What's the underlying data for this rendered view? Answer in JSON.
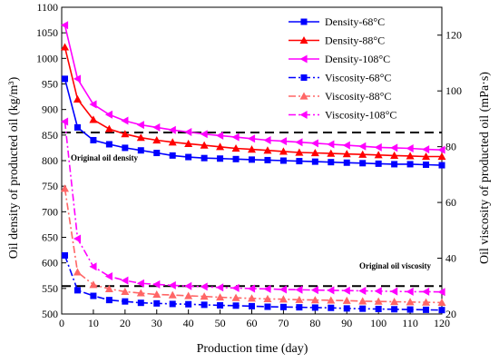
{
  "chart_data": {
    "type": "line",
    "x_label": "Production time (day)",
    "y_left_label": "Oil density of producted oil (kg/m³)",
    "y_right_label": "Oil viscosity of producted oil (mPa·s)",
    "x_range": [
      0,
      120
    ],
    "x_ticks": [
      0,
      10,
      20,
      30,
      40,
      50,
      60,
      70,
      80,
      90,
      100,
      110,
      120
    ],
    "y_left_range": [
      500,
      1100
    ],
    "y_left_ticks": [
      500,
      550,
      600,
      650,
      700,
      750,
      800,
      850,
      900,
      950,
      1000,
      1050,
      1100
    ],
    "y_right_range": [
      20,
      130
    ],
    "y_right_ticks": [
      20,
      40,
      60,
      80,
      100,
      120
    ],
    "grid": false,
    "legend_position": "top-right",
    "series": [
      {
        "name": "Density-68°C",
        "axis": "left",
        "color": "#0000ff",
        "line": "solid",
        "marker": "square",
        "x": [
          1,
          5,
          10,
          15,
          20,
          25,
          30,
          35,
          40,
          45,
          50,
          55,
          60,
          65,
          70,
          75,
          80,
          85,
          90,
          95,
          100,
          105,
          110,
          115,
          120
        ],
        "y": [
          960,
          865,
          840,
          832,
          825,
          820,
          815,
          810,
          807,
          805,
          804,
          803,
          802,
          801,
          800,
          799,
          798,
          797,
          796,
          795,
          794,
          793,
          793,
          792,
          791
        ]
      },
      {
        "name": "Density-88°C",
        "axis": "left",
        "color": "#ff0000",
        "line": "solid",
        "marker": "triangle-up",
        "x": [
          1,
          5,
          10,
          15,
          20,
          25,
          30,
          35,
          40,
          45,
          50,
          55,
          60,
          65,
          70,
          75,
          80,
          85,
          90,
          95,
          100,
          105,
          110,
          115,
          120
        ],
        "y": [
          1022,
          920,
          880,
          862,
          852,
          845,
          840,
          836,
          833,
          830,
          827,
          824,
          822,
          820,
          818,
          816,
          815,
          814,
          813,
          812,
          811,
          810,
          809,
          808,
          808
        ]
      },
      {
        "name": "Density-108°C",
        "axis": "left",
        "color": "#ff00ff",
        "line": "solid",
        "marker": "triangle-left",
        "x": [
          1,
          5,
          10,
          15,
          20,
          25,
          30,
          35,
          40,
          45,
          50,
          55,
          60,
          65,
          70,
          75,
          80,
          85,
          90,
          95,
          100,
          105,
          110,
          115,
          120
        ],
        "y": [
          1065,
          960,
          910,
          890,
          878,
          870,
          865,
          860,
          856,
          852,
          849,
          846,
          843,
          840,
          838,
          836,
          834,
          832,
          830,
          828,
          826,
          825,
          824,
          822,
          821
        ]
      },
      {
        "name": "Viscosity-68°C",
        "axis": "right",
        "color": "#0000ff",
        "line": "dashdot",
        "marker": "square",
        "x": [
          1,
          5,
          10,
          15,
          20,
          25,
          30,
          35,
          40,
          45,
          50,
          55,
          60,
          65,
          70,
          75,
          80,
          85,
          90,
          95,
          100,
          105,
          110,
          115,
          120
        ],
        "y": [
          41,
          28.5,
          26.5,
          25,
          24.5,
          24,
          23.8,
          23.6,
          23.5,
          23.3,
          23.1,
          23,
          22.8,
          22.6,
          22.5,
          22.4,
          22.3,
          22.2,
          22,
          21.9,
          21.8,
          21.7,
          21.6,
          21.5,
          21.4
        ]
      },
      {
        "name": "Viscosity-88°C",
        "axis": "right",
        "color": "#ff6666",
        "line": "dashdot",
        "marker": "triangle-up",
        "x": [
          1,
          5,
          10,
          15,
          20,
          25,
          30,
          35,
          40,
          45,
          50,
          55,
          60,
          65,
          70,
          75,
          80,
          85,
          90,
          95,
          100,
          105,
          110,
          115,
          120
        ],
        "y": [
          65,
          35,
          30.5,
          29,
          28,
          27.5,
          27,
          26.8,
          26.5,
          26.3,
          26,
          25.8,
          25.6,
          25.4,
          25.3,
          25.1,
          25,
          24.9,
          24.8,
          24.6,
          24.5,
          24.4,
          24.3,
          24.2,
          24.1
        ]
      },
      {
        "name": "Viscosity-108°C",
        "axis": "right",
        "color": "#ff00ff",
        "line": "dashdot",
        "marker": "triangle-left",
        "x": [
          1,
          5,
          10,
          15,
          20,
          25,
          30,
          35,
          40,
          45,
          50,
          55,
          60,
          65,
          70,
          75,
          80,
          85,
          90,
          95,
          100,
          105,
          110,
          115,
          120
        ],
        "y": [
          89,
          47,
          37,
          33.5,
          32,
          31,
          30.6,
          30.3,
          30,
          29.8,
          29.5,
          29.3,
          29.1,
          29,
          28.8,
          28.7,
          28.6,
          28.5,
          28.4,
          28.3,
          28.2,
          28.1,
          28,
          28,
          27.9
        ]
      }
    ],
    "reference_lines": [
      {
        "label": "Original oil density",
        "axis": "left",
        "value": 855
      },
      {
        "label": "Original oil viscosity",
        "axis": "right",
        "value": 30
      }
    ]
  }
}
